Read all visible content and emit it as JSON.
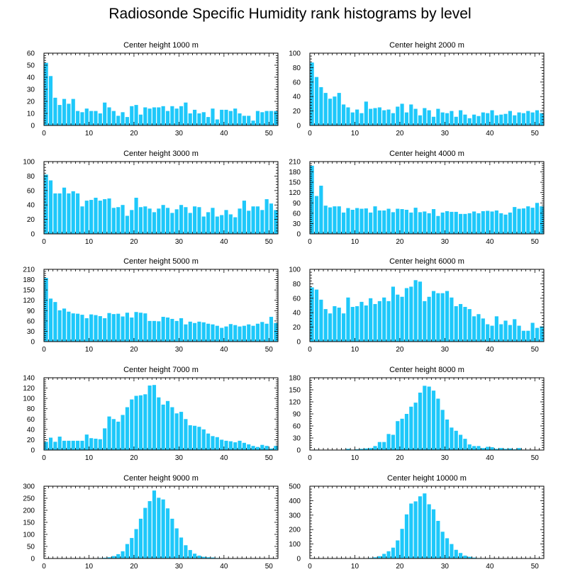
{
  "title": "Radiosonde Specific Humidity rank histograms by level",
  "colors": {
    "bar": "#1ec8fa",
    "axis": "#000000"
  },
  "chart_data": [
    {
      "type": "bar",
      "title": "Center height 1000 m",
      "ylim": [
        0,
        60
      ],
      "yticks": [
        0,
        10,
        20,
        30,
        40,
        50,
        60
      ],
      "xlim": [
        0,
        52
      ],
      "xticks": [
        0,
        10,
        20,
        30,
        40,
        50
      ],
      "values": [
        52,
        41,
        23,
        17,
        22,
        18,
        22,
        12,
        11,
        14,
        12,
        12,
        10,
        19,
        15,
        12,
        8,
        11,
        7,
        16,
        17,
        9,
        15,
        14,
        15,
        15,
        16,
        12,
        16,
        14,
        16,
        19,
        10,
        13,
        10,
        11,
        7,
        14,
        5,
        13,
        13,
        12,
        14,
        10,
        8,
        8,
        4,
        12,
        11,
        12,
        12,
        12
      ]
    },
    {
      "type": "bar",
      "title": "Center height 2000 m",
      "ylim": [
        0,
        100
      ],
      "yticks": [
        0,
        20,
        40,
        60,
        80,
        100
      ],
      "xlim": [
        0,
        52
      ],
      "xticks": [
        0,
        10,
        20,
        30,
        40,
        50
      ],
      "values": [
        87,
        67,
        53,
        45,
        37,
        40,
        45,
        29,
        25,
        18,
        22,
        17,
        33,
        23,
        24,
        25,
        21,
        22,
        17,
        26,
        30,
        18,
        29,
        23,
        14,
        24,
        21,
        12,
        23,
        18,
        17,
        20,
        12,
        21,
        15,
        10,
        15,
        13,
        18,
        17,
        21,
        14,
        15,
        16,
        20,
        14,
        18,
        17,
        20,
        18,
        21,
        17
      ]
    },
    {
      "type": "bar",
      "title": "Center height 3000 m",
      "ylim": [
        0,
        100
      ],
      "yticks": [
        0,
        20,
        40,
        60,
        80,
        100
      ],
      "xlim": [
        0,
        52
      ],
      "xticks": [
        0,
        10,
        20,
        30,
        40,
        50
      ],
      "values": [
        82,
        74,
        56,
        56,
        64,
        56,
        59,
        56,
        38,
        46,
        47,
        50,
        46,
        48,
        49,
        36,
        37,
        40,
        25,
        33,
        50,
        37,
        38,
        35,
        30,
        35,
        40,
        36,
        29,
        34,
        40,
        37,
        29,
        38,
        37,
        24,
        30,
        36,
        24,
        26,
        33,
        27,
        23,
        35,
        46,
        32,
        38,
        38,
        33,
        48,
        42,
        33
      ]
    },
    {
      "type": "bar",
      "title": "Center height 4000 m",
      "ylim": [
        0,
        210
      ],
      "yticks": [
        0,
        30,
        60,
        90,
        120,
        150,
        180,
        210
      ],
      "xlim": [
        0,
        52
      ],
      "xticks": [
        0,
        10,
        20,
        30,
        40,
        50
      ],
      "values": [
        198,
        110,
        140,
        82,
        77,
        80,
        80,
        62,
        75,
        70,
        75,
        73,
        74,
        62,
        80,
        68,
        68,
        73,
        63,
        73,
        72,
        70,
        62,
        76,
        63,
        65,
        60,
        72,
        52,
        62,
        66,
        64,
        64,
        58,
        58,
        60,
        65,
        60,
        66,
        67,
        65,
        68,
        60,
        56,
        62,
        78,
        73,
        74,
        80,
        76,
        90,
        80
      ]
    },
    {
      "type": "bar",
      "title": "Center height 5000 m",
      "ylim": [
        0,
        210
      ],
      "yticks": [
        0,
        30,
        60,
        90,
        120,
        150,
        180,
        210
      ],
      "xlim": [
        0,
        52
      ],
      "xticks": [
        0,
        10,
        20,
        30,
        40,
        50
      ],
      "values": [
        185,
        125,
        115,
        91,
        96,
        87,
        82,
        81,
        78,
        68,
        79,
        77,
        74,
        68,
        83,
        80,
        81,
        73,
        84,
        70,
        86,
        84,
        82,
        60,
        60,
        59,
        72,
        70,
        66,
        60,
        68,
        50,
        58,
        54,
        58,
        56,
        52,
        50,
        46,
        40,
        44,
        51,
        48,
        44,
        46,
        50,
        46,
        52,
        57,
        52,
        72,
        54
      ]
    },
    {
      "type": "bar",
      "title": "Center height 6000 m",
      "ylim": [
        0,
        100
      ],
      "yticks": [
        0,
        20,
        40,
        60,
        80,
        100
      ],
      "xlim": [
        0,
        52
      ],
      "xticks": [
        0,
        10,
        20,
        30,
        40,
        50
      ],
      "values": [
        75,
        72,
        58,
        45,
        39,
        49,
        47,
        39,
        61,
        48,
        49,
        55,
        50,
        60,
        52,
        56,
        61,
        56,
        76,
        65,
        62,
        74,
        76,
        85,
        83,
        56,
        62,
        70,
        67,
        67,
        70,
        61,
        49,
        52,
        48,
        45,
        35,
        38,
        32,
        24,
        22,
        35,
        24,
        29,
        23,
        31,
        22,
        15,
        15,
        26,
        19,
        21
      ]
    },
    {
      "type": "bar",
      "title": "Center height 7000 m",
      "ylim": [
        0,
        140
      ],
      "yticks": [
        0,
        20,
        40,
        60,
        80,
        100,
        120,
        140
      ],
      "xlim": [
        0,
        52
      ],
      "xticks": [
        0,
        10,
        20,
        30,
        40,
        50
      ],
      "values": [
        16,
        24,
        16,
        26,
        18,
        18,
        18,
        18,
        18,
        30,
        23,
        22,
        21,
        42,
        65,
        60,
        55,
        68,
        83,
        98,
        105,
        106,
        108,
        125,
        126,
        102,
        88,
        95,
        83,
        71,
        74,
        60,
        48,
        47,
        45,
        40,
        32,
        27,
        25,
        20,
        18,
        17,
        15,
        18,
        14,
        11,
        8,
        6,
        10,
        8,
        3,
        8
      ]
    },
    {
      "type": "bar",
      "title": "Center height 8000 m",
      "ylim": [
        0,
        180
      ],
      "yticks": [
        0,
        30,
        60,
        90,
        120,
        150,
        180
      ],
      "xlim": [
        0,
        52
      ],
      "xticks": [
        0,
        10,
        20,
        30,
        40,
        50
      ],
      "values": [
        0,
        1,
        0,
        0,
        0,
        0,
        0,
        1,
        3,
        1,
        2,
        3,
        4,
        5,
        10,
        20,
        20,
        40,
        38,
        72,
        78,
        90,
        108,
        118,
        143,
        160,
        158,
        148,
        128,
        100,
        76,
        56,
        48,
        38,
        28,
        14,
        10,
        10,
        5,
        8,
        7,
        3,
        5,
        3,
        4,
        2,
        5,
        1,
        1,
        0,
        0,
        0
      ]
    },
    {
      "type": "bar",
      "title": "Center height 9000 m",
      "ylim": [
        0,
        300
      ],
      "yticks": [
        0,
        50,
        100,
        150,
        200,
        250,
        300
      ],
      "xlim": [
        0,
        52
      ],
      "xticks": [
        0,
        10,
        20,
        30,
        40,
        50
      ],
      "values": [
        0,
        0,
        0,
        0,
        0,
        0,
        0,
        0,
        0,
        0,
        0,
        1,
        2,
        3,
        5,
        10,
        18,
        30,
        60,
        85,
        122,
        165,
        210,
        238,
        282,
        252,
        245,
        208,
        165,
        125,
        87,
        55,
        35,
        20,
        12,
        7,
        5,
        4,
        2,
        1,
        1,
        0,
        0,
        0,
        0,
        0,
        0,
        0,
        0,
        0,
        0,
        0
      ]
    },
    {
      "type": "bar",
      "title": "Center height 10000 m",
      "ylim": [
        0,
        500
      ],
      "yticks": [
        0,
        100,
        200,
        300,
        400,
        500
      ],
      "xlim": [
        0,
        52
      ],
      "xticks": [
        0,
        10,
        20,
        30,
        40,
        50
      ],
      "values": [
        0,
        0,
        0,
        0,
        0,
        0,
        0,
        0,
        0,
        0,
        0,
        1,
        2,
        4,
        8,
        16,
        32,
        50,
        75,
        125,
        205,
        305,
        380,
        395,
        430,
        450,
        375,
        340,
        260,
        185,
        140,
        100,
        60,
        38,
        20,
        12,
        6,
        3,
        2,
        1,
        1,
        0,
        0,
        0,
        0,
        0,
        0,
        0,
        0,
        0,
        0,
        0
      ]
    }
  ]
}
